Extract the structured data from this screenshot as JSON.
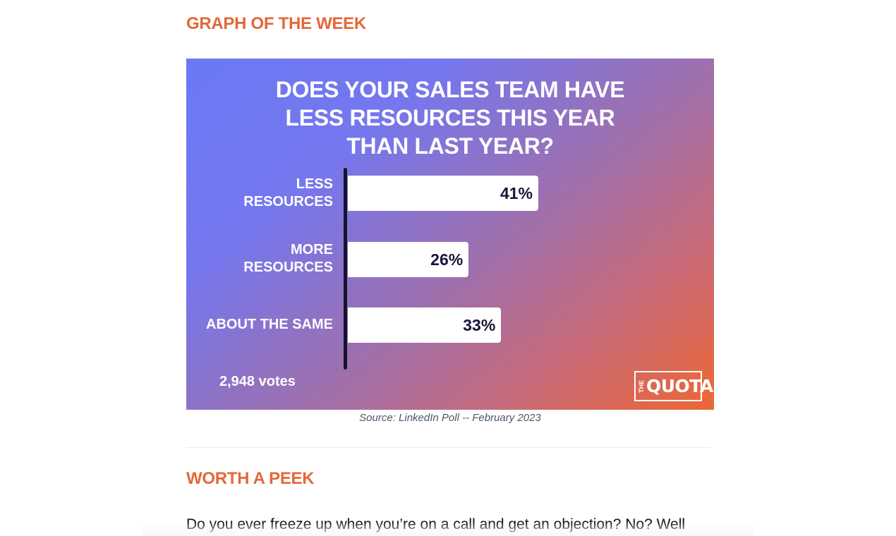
{
  "sections": {
    "graph_heading": "GRAPH OF THE WEEK",
    "peek_heading": "WORTH A PEEK"
  },
  "chart_data": {
    "type": "bar",
    "orientation": "horizontal",
    "title_lines": [
      "DOES YOUR SALES TEAM HAVE",
      "LESS RESOURCES THIS YEAR",
      "THAN LAST YEAR?"
    ],
    "categories": [
      "LESS\nRESOURCES",
      "MORE\nRESOURCES",
      "ABOUT THE SAME"
    ],
    "values": [
      41,
      26,
      33
    ],
    "value_labels": [
      "41%",
      "26%",
      "33%"
    ],
    "unit": "%",
    "xlim": [
      0,
      100
    ],
    "votes_label": "2,948 votes",
    "logo_small": "THE",
    "logo_main": "QUOTA"
  },
  "caption": "Source: LinkedIn Poll -- February 2023",
  "body_text": "Do you ever freeze up when you’re on a call and get an objection? No? Well",
  "colors": {
    "accent": "#e4683a",
    "gradient_start": "#6b78f4",
    "gradient_end": "#ec6733",
    "bar": "#ffffff",
    "bar_text": "#16163a"
  }
}
